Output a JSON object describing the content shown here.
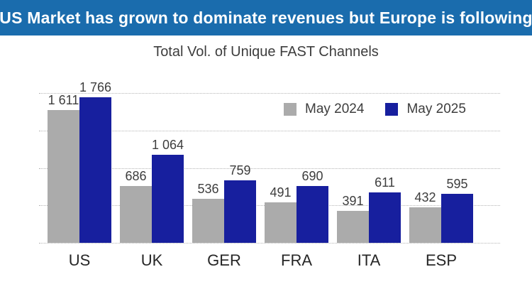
{
  "banner": {
    "text": "US Market has grown to dominate revenues but Europe is following",
    "bg_color": "#1a6cad",
    "text_color": "#ffffff"
  },
  "chart": {
    "title": "Total Vol. of Unique FAST Channels"
  },
  "chart_data": {
    "type": "bar",
    "title": "Total Vol. of Unique FAST Channels",
    "categories": [
      "US",
      "UK",
      "GER",
      "FRA",
      "ITA",
      "ESP"
    ],
    "series": [
      {
        "name": "May 2024",
        "color": "#ababab",
        "values": [
          1611,
          686,
          536,
          491,
          391,
          432
        ],
        "labels": [
          "1 611",
          "686",
          "536",
          "491",
          "391",
          "432"
        ]
      },
      {
        "name": "May 2025",
        "color": "#171f9e",
        "values": [
          1766,
          1064,
          759,
          690,
          611,
          595
        ],
        "labels": [
          "1 766",
          "1 064",
          "759",
          "690",
          "611",
          "595"
        ]
      }
    ],
    "ylim": [
      0,
      1815
    ],
    "xlabel": "",
    "ylabel": "",
    "grid": "horizontal-dotted",
    "gridline_count": 5,
    "legend_position": "top-right",
    "value_labels_shown": true
  }
}
